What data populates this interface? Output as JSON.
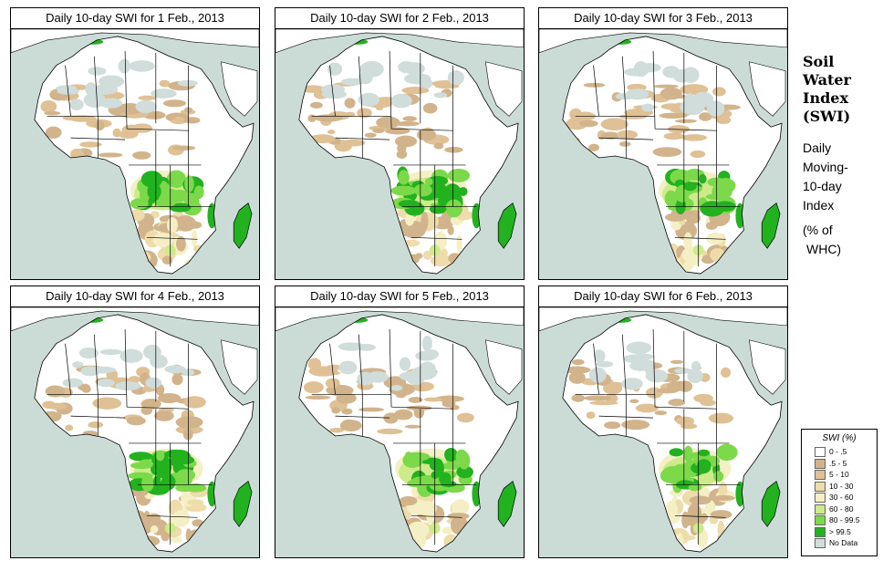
{
  "panels": [
    {
      "title": "Daily 10-day SWI for  1 Feb., 2013"
    },
    {
      "title": "Daily 10-day SWI for  2 Feb., 2013"
    },
    {
      "title": "Daily 10-day SWI for  3 Feb., 2013"
    },
    {
      "title": "Daily 10-day SWI for  4 Feb., 2013"
    },
    {
      "title": "Daily 10-day SWI for  5 Feb., 2013"
    },
    {
      "title": "Daily 10-day SWI for  6 Feb., 2013"
    }
  ],
  "side": {
    "title_lines": [
      "Soil",
      "Water",
      "Index",
      "(SWI)"
    ],
    "sub_lines": [
      "Daily",
      "Moving-",
      "10-day",
      "Index"
    ],
    "unit_lines": [
      "(% of",
      "WHC)"
    ]
  },
  "legend": {
    "title": "SWI (%)",
    "items": [
      {
        "label": "0 - .5",
        "color": "#ffffff"
      },
      {
        "label": ".5 - 5",
        "color": "#d2b48c"
      },
      {
        "label": "5 - 10",
        "color": "#dfc195"
      },
      {
        "label": "10 - 30",
        "color": "#eedcaa"
      },
      {
        "label": "30 - 60",
        "color": "#f5efc5"
      },
      {
        "label": "60 - 80",
        "color": "#cdeb8b"
      },
      {
        "label": "80 - 99.5",
        "color": "#7cd94a"
      },
      {
        "label": "> 99.5",
        "color": "#22b21f"
      },
      {
        "label": "No Data",
        "color": "#d0ddda"
      }
    ]
  },
  "colors": {
    "ocean": "#cbdcd6",
    "land": "#ffffff",
    "border": "#000000"
  }
}
